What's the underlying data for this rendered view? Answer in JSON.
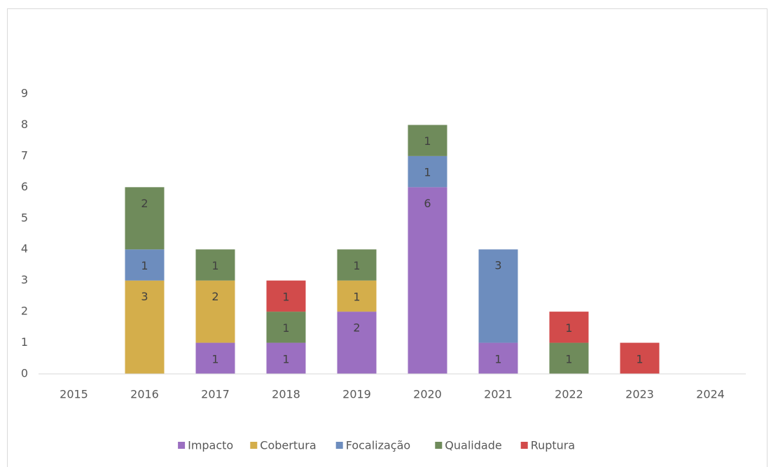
{
  "chart_data": {
    "type": "bar",
    "stacked": true,
    "categories": [
      "2015",
      "2016",
      "2017",
      "2018",
      "2019",
      "2020",
      "2021",
      "2022",
      "2023",
      "2024"
    ],
    "series": [
      {
        "name": "Impacto",
        "color": "#9b6fc1",
        "values": [
          null,
          null,
          1,
          1,
          2,
          6,
          1,
          null,
          null,
          null
        ]
      },
      {
        "name": "Cobertura",
        "color": "#d4ae4b",
        "values": [
          null,
          3,
          2,
          null,
          1,
          null,
          null,
          null,
          null,
          null
        ]
      },
      {
        "name": "Focalização",
        "color": "#6d8dbe",
        "values": [
          null,
          1,
          null,
          null,
          null,
          1,
          3,
          null,
          null,
          null
        ]
      },
      {
        "name": "Qualidade",
        "color": "#6f8b5b",
        "values": [
          null,
          2,
          1,
          1,
          1,
          1,
          null,
          1,
          null,
          null
        ]
      },
      {
        "name": "Ruptura",
        "color": "#d24b4b",
        "values": [
          null,
          null,
          null,
          1,
          null,
          null,
          null,
          1,
          1,
          null
        ]
      }
    ],
    "ylim": [
      0,
      9
    ],
    "yticks": [
      0,
      1,
      2,
      3,
      4,
      5,
      6,
      7,
      8,
      9
    ],
    "grid": false,
    "legend": "bottom"
  }
}
